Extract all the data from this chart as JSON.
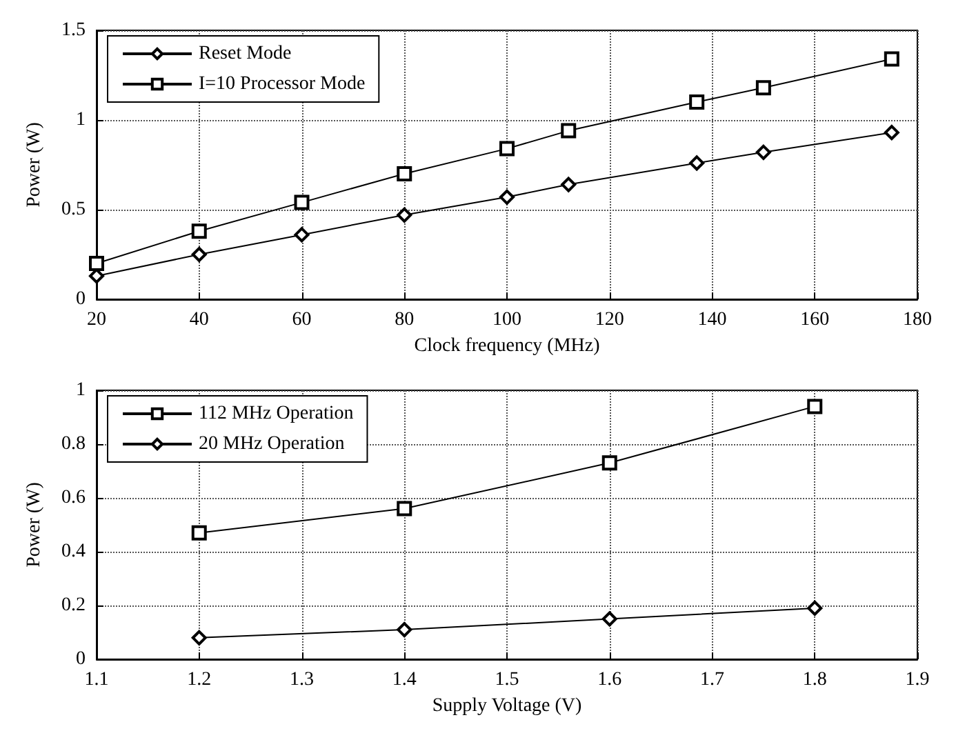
{
  "chart_data": [
    {
      "type": "line",
      "xlabel": "Clock frequency (MHz)",
      "ylabel": "Power (W)",
      "x": [
        20,
        40,
        60,
        80,
        100,
        112,
        137,
        150,
        175
      ],
      "series": [
        {
          "name": "Reset Mode",
          "color": "#000000",
          "marker": "diamond",
          "values": [
            0.13,
            0.25,
            0.36,
            0.47,
            0.57,
            0.64,
            0.76,
            0.82,
            0.93
          ]
        },
        {
          "name": "I=10 Processor Mode",
          "color": "#000000",
          "marker": "square",
          "values": [
            0.2,
            0.38,
            0.54,
            0.7,
            0.84,
            0.94,
            1.1,
            1.18,
            1.34
          ]
        }
      ],
      "xlim": [
        20,
        180
      ],
      "xticks": [
        20,
        40,
        60,
        80,
        100,
        120,
        140,
        160,
        180
      ],
      "ylim": [
        0,
        1.5
      ],
      "yticks": [
        0,
        0.5,
        1,
        1.5
      ],
      "grid": true,
      "legend": "top left",
      "line_style": "solid"
    },
    {
      "type": "line",
      "xlabel": "Supply Voltage (V)",
      "ylabel": "Power (W)",
      "x": [
        1.2,
        1.4,
        1.6,
        1.8
      ],
      "series": [
        {
          "name": "112 MHz Operation",
          "color": "#000000",
          "marker": "square",
          "values": [
            0.47,
            0.56,
            0.73,
            0.94
          ]
        },
        {
          "name": "20 MHz Operation",
          "color": "#000000",
          "marker": "diamond",
          "values": [
            0.08,
            0.11,
            0.15,
            0.19
          ]
        }
      ],
      "xlim": [
        1.1,
        1.9
      ],
      "xticks": [
        1.1,
        1.2,
        1.3,
        1.4,
        1.5,
        1.6,
        1.7,
        1.8,
        1.9
      ],
      "ylim": [
        0,
        1
      ],
      "yticks": [
        0,
        0.2,
        0.4,
        0.6,
        0.8,
        1
      ],
      "grid": true,
      "legend": "top left",
      "line_style": "solid"
    }
  ]
}
